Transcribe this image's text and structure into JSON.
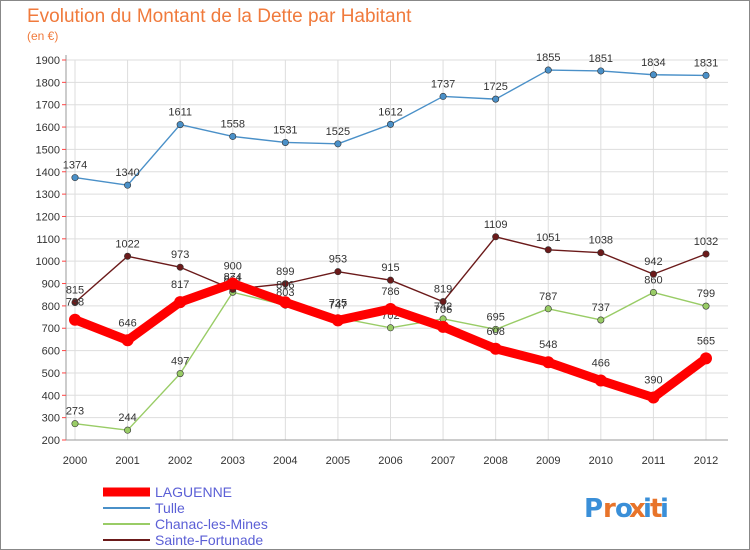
{
  "chart_data": {
    "type": "line",
    "title": "Evolution du Montant de la Dette par Habitant",
    "subtitle": "(en €)",
    "x": [
      "2000",
      "2001",
      "2002",
      "2003",
      "2004",
      "2005",
      "2006",
      "2007",
      "2008",
      "2009",
      "2010",
      "2011",
      "2012"
    ],
    "ylim": [
      200,
      1900
    ],
    "yticks": [
      200,
      300,
      400,
      500,
      600,
      700,
      800,
      900,
      1000,
      1100,
      1200,
      1300,
      1400,
      1500,
      1600,
      1700,
      1800,
      1900
    ],
    "grid": true,
    "legend": "bottom-left",
    "series": [
      {
        "name": "LAGUENNE",
        "color": "#ff0000",
        "values": [
          738,
          646,
          817,
          900,
          816,
          735,
          786,
          706,
          608,
          548,
          466,
          390,
          565
        ]
      },
      {
        "name": "Tulle",
        "color": "#4a90c8",
        "values": [
          1374,
          1340,
          1611,
          1558,
          1531,
          1525,
          1612,
          1737,
          1725,
          1855,
          1851,
          1834,
          1831
        ]
      },
      {
        "name": "Chanac-les-Mines",
        "color": "#99cc66",
        "values": [
          273,
          244,
          497,
          861,
          803,
          747,
          702,
          742,
          695,
          787,
          737,
          860,
          799
        ]
      },
      {
        "name": "Sainte-Fortunade",
        "color": "#6b1a1a",
        "values": [
          815,
          1022,
          973,
          874,
          899,
          953,
          915,
          819,
          1109,
          1051,
          1038,
          942,
          1032
        ]
      }
    ]
  },
  "logo": {
    "text": "Proxiti",
    "letters": [
      "P",
      "r",
      "o",
      "x",
      "i",
      "t",
      "i"
    ],
    "colors": [
      "#3a8fd8",
      "#e8742a",
      "#3a8fd8",
      "#e8742a",
      "#3a8fd8",
      "#e8742a",
      "#3a8fd8"
    ]
  }
}
